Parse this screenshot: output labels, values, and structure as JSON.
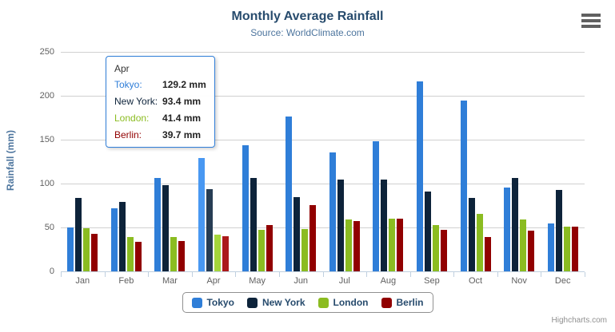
{
  "header": {
    "title": "Monthly Average Rainfall",
    "subtitle": "Source: WorldClimate.com"
  },
  "icons": {
    "export_menu": "hamburger-icon"
  },
  "yaxis": {
    "title": "Rainfall (mm)",
    "ticks": [
      0,
      50,
      100,
      150,
      200,
      250
    ]
  },
  "chart_data": {
    "type": "bar",
    "title": "Monthly Average Rainfall",
    "subtitle": "Source: WorldClimate.com",
    "categories": [
      "Jan",
      "Feb",
      "Mar",
      "Apr",
      "May",
      "Jun",
      "Jul",
      "Aug",
      "Sep",
      "Oct",
      "Nov",
      "Dec"
    ],
    "series": [
      {
        "name": "Tokyo",
        "color": "#2f7ed8",
        "values": [
          49.9,
          71.5,
          106.4,
          129.2,
          144.0,
          176.0,
          135.6,
          148.5,
          216.4,
          194.1,
          95.6,
          54.4
        ]
      },
      {
        "name": "New York",
        "color": "#0d233a",
        "values": [
          83.6,
          78.8,
          98.5,
          93.4,
          106.0,
          84.5,
          105.0,
          104.3,
          91.2,
          83.5,
          106.6,
          92.3
        ]
      },
      {
        "name": "London",
        "color": "#8bbc21",
        "values": [
          48.9,
          38.8,
          39.3,
          41.4,
          47.0,
          48.3,
          59.0,
          59.6,
          52.4,
          65.2,
          59.3,
          51.2
        ]
      },
      {
        "name": "Berlin",
        "color": "#910000",
        "values": [
          42.4,
          33.2,
          34.5,
          39.7,
          52.6,
          75.5,
          57.4,
          60.4,
          47.6,
          39.1,
          46.8,
          51.1
        ]
      }
    ],
    "xlabel": "",
    "ylabel": "Rainfall (mm)",
    "ylim": [
      0,
      250
    ],
    "tick_interval": 50,
    "grid": true,
    "legend_position": "bottom",
    "hovered_category": "Apr"
  },
  "tooltip": {
    "header": "Apr",
    "border_color": "#2f7ed8",
    "rows": [
      {
        "label": "Tokyo:",
        "value": "129.2 mm",
        "color": "#2f7ed8"
      },
      {
        "label": "New York:",
        "value": "93.4 mm",
        "color": "#0d233a"
      },
      {
        "label": "London:",
        "value": "41.4 mm",
        "color": "#8bbc21"
      },
      {
        "label": "Berlin:",
        "value": "39.7 mm",
        "color": "#910000"
      }
    ]
  },
  "legend": {
    "items": [
      {
        "label": "Tokyo",
        "color": "#2f7ed8"
      },
      {
        "label": "New York",
        "color": "#0d233a"
      },
      {
        "label": "London",
        "color": "#8bbc21"
      },
      {
        "label": "Berlin",
        "color": "#910000"
      }
    ]
  },
  "credits": "Highcharts.com"
}
